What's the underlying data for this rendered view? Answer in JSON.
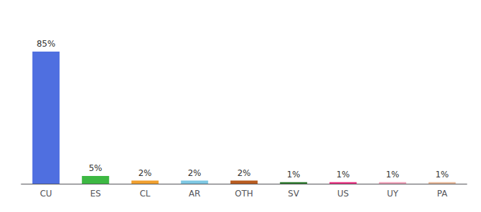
{
  "chart_data": {
    "type": "bar",
    "categories": [
      "CU",
      "ES",
      "CL",
      "AR",
      "OTH",
      "SV",
      "US",
      "UY",
      "PA"
    ],
    "values": [
      85,
      5,
      2,
      2,
      2,
      1,
      1,
      1,
      1
    ],
    "value_labels": [
      "85%",
      "5%",
      "2%",
      "2%",
      "2%",
      "1%",
      "1%",
      "1%",
      "1%"
    ],
    "colors": [
      "#4f6fe0",
      "#3db843",
      "#f0a030",
      "#7ec8e3",
      "#b85c20",
      "#2d7a2d",
      "#e83080",
      "#f0a0b8",
      "#e8b898"
    ],
    "ylim": [
      0,
      100
    ],
    "data_labels": true,
    "tick_labels": "x",
    "grid": false
  }
}
